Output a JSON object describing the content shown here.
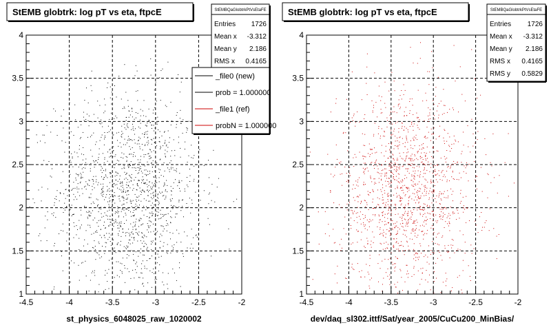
{
  "footer_text": "",
  "colors": {
    "new_series": "#000000",
    "ref_series": "#cc0000",
    "frame": "#000000",
    "background": "#ffffff"
  },
  "panels": [
    {
      "title": "StEMB globtrk: log pT vs eta, ftpcE",
      "xlabel": "st_physics_6048025_raw_1020002",
      "stats": {
        "name": "StEMBQaGlobtrkPtVsEtaFE",
        "rows": [
          {
            "label": "Entries",
            "value": "1726"
          },
          {
            "label": "Mean x",
            "value": "-3.312"
          },
          {
            "label": "Mean y",
            "value": "2.186"
          },
          {
            "label": "RMS x",
            "value": "0.4165"
          }
        ]
      },
      "legend": [
        {
          "label": "_file0 (new)",
          "color": "#000000"
        },
        {
          "label": "prob = 1.000000",
          "color": "#000000"
        },
        {
          "label": "_file1 (ref)",
          "color": "#cc0000"
        },
        {
          "label": "probN = 1.000000",
          "color": "#cc0000"
        }
      ]
    },
    {
      "title": "StEMB globtrk: log pT vs eta, ftpcE",
      "xlabel": "dev/daq_sl302.ittf/Sat/year_2005/CuCu200_MinBias/",
      "stats": {
        "name": "StEMBQaGlobtrkPtVsEtaFE",
        "rows": [
          {
            "label": "Entries",
            "value": "1726"
          },
          {
            "label": "Mean x",
            "value": "-3.312"
          },
          {
            "label": "Mean y",
            "value": "2.186"
          },
          {
            "label": "RMS x",
            "value": "0.4165"
          },
          {
            "label": "RMS y",
            "value": "0.5829"
          }
        ]
      },
      "legend": []
    }
  ],
  "chart_data": [
    {
      "type": "scatter",
      "title": "StEMB globtrk: log pT vs eta, ftpcE",
      "xlabel": "st_physics_6048025_raw_1020002",
      "ylabel": "",
      "xlim": [
        -4.5,
        -2
      ],
      "ylim": [
        1,
        4
      ],
      "xticks": [
        "-4.5",
        "-4",
        "-3.5",
        "-3",
        "-2.5",
        "-2"
      ],
      "yticks": [
        "1",
        "1.5",
        "2",
        "2.5",
        "3",
        "3.5",
        "4"
      ],
      "grid": true,
      "legend_position": "top-right",
      "series": [
        {
          "name": "_file0 (new)",
          "color": "#000000",
          "entries": 1726,
          "mean_x": -3.312,
          "mean_y": 2.186,
          "rms_x": 0.4165,
          "rms_y": 0.5829
        }
      ]
    },
    {
      "type": "scatter",
      "title": "StEMB globtrk: log pT vs eta, ftpcE",
      "xlabel": "dev/daq_sl302.ittf/Sat/year_2005/CuCu200_MinBias/",
      "ylabel": "",
      "xlim": [
        -4.5,
        -2
      ],
      "ylim": [
        1,
        4
      ],
      "xticks": [
        "-4.5",
        "-4",
        "-3.5",
        "-3",
        "-2.5",
        "-2"
      ],
      "yticks": [
        "1",
        "1.5",
        "2",
        "2.5",
        "3",
        "3.5",
        "4"
      ],
      "grid": true,
      "series": [
        {
          "name": "_file1 (ref)",
          "color": "#cc0000",
          "entries": 1726,
          "mean_x": -3.312,
          "mean_y": 2.186,
          "rms_x": 0.4165,
          "rms_y": 0.5829
        }
      ]
    }
  ]
}
